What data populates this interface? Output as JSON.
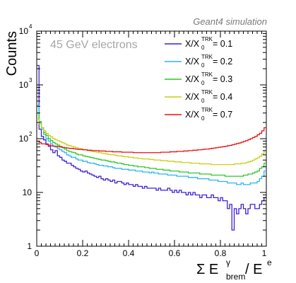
{
  "chart_data": {
    "type": "line",
    "top_label": "Geant4 simulation",
    "annotation": "45 GeV electrons",
    "ylabel": "Counts",
    "xlabel": {
      "prefix": "Σ E",
      "sup": "γ",
      "sub": "brem",
      "suffix": " / E",
      "suffix_sup": "e"
    },
    "xlim": [
      0,
      1
    ],
    "ylim": [
      1,
      10000
    ],
    "yscale": "log",
    "x_ticks": [
      "0",
      "0.2",
      "0.4",
      "0.6",
      "0.8",
      "1"
    ],
    "y_ticks": [
      {
        "base": "1"
      },
      {
        "base": "10"
      },
      {
        "base": "10",
        "exp": "2"
      },
      {
        "base": "10",
        "exp": "3"
      },
      {
        "base": "10",
        "exp": "4"
      }
    ],
    "legend_label_parts": {
      "main": "X/X",
      "sub": "0",
      "sup": "TRK"
    },
    "bin_width": 0.01,
    "series": [
      {
        "name": "X/X0TRK = 0.1",
        "legend_value": " = 0.1",
        "color": "#3d1fd6",
        "values": [
          2300,
          150,
          110,
          95,
          80,
          72,
          62,
          55,
          60,
          48,
          45,
          40,
          38,
          35,
          35,
          32,
          30,
          28,
          27,
          25,
          24,
          25,
          23,
          22,
          21,
          20,
          19,
          20,
          18,
          17,
          18,
          17,
          16,
          17,
          15,
          16,
          16,
          15,
          14,
          15,
          14,
          14,
          13,
          14,
          13,
          13,
          12,
          13,
          12,
          12,
          12,
          12,
          11,
          12,
          11,
          11,
          11,
          12,
          11,
          10,
          11,
          10,
          11,
          10,
          10,
          9,
          10,
          9,
          10,
          9,
          9,
          8,
          9,
          9,
          8,
          8,
          9,
          8,
          8,
          7,
          8,
          7,
          7,
          5,
          6,
          2,
          5,
          4,
          5,
          6,
          5,
          4,
          5,
          6,
          6,
          5,
          5,
          6,
          7,
          8
        ]
      },
      {
        "name": "X/X0TRK = 0.2",
        "legend_value": " = 0.2",
        "color": "#27b5f2",
        "values": [
          420,
          210,
          150,
          120,
          100,
          90,
          80,
          72,
          70,
          65,
          62,
          58,
          55,
          50,
          48,
          45,
          45,
          42,
          40,
          40,
          38,
          38,
          36,
          35,
          35,
          34,
          33,
          32,
          32,
          31,
          31,
          30,
          30,
          29,
          28,
          28,
          28,
          27,
          27,
          27,
          26,
          26,
          26,
          25,
          25,
          25,
          24,
          24,
          24,
          23,
          24,
          23,
          23,
          22,
          22,
          22,
          22,
          21,
          21,
          21,
          21,
          20,
          20,
          20,
          20,
          20,
          19,
          19,
          19,
          19,
          18,
          18,
          18,
          18,
          18,
          17,
          17,
          17,
          17,
          16,
          16,
          16,
          16,
          15,
          15,
          15,
          15,
          14,
          14,
          15,
          14,
          14,
          14,
          15,
          15,
          15,
          16,
          18,
          20,
          25
        ]
      },
      {
        "name": "X/X0TRK = 0.3",
        "legend_value": " = 0.3",
        "color": "#2ec62b",
        "values": [
          300,
          200,
          160,
          130,
          115,
          100,
          92,
          85,
          80,
          76,
          72,
          68,
          64,
          60,
          58,
          56,
          55,
          52,
          50,
          50,
          48,
          47,
          46,
          45,
          44,
          43,
          42,
          41,
          40,
          40,
          39,
          38,
          37,
          37,
          36,
          35,
          35,
          34,
          33,
          33,
          32,
          32,
          31,
          31,
          30,
          30,
          30,
          29,
          29,
          28,
          28,
          28,
          27,
          27,
          27,
          26,
          26,
          26,
          25,
          25,
          25,
          25,
          24,
          24,
          24,
          24,
          23,
          23,
          23,
          23,
          23,
          22,
          22,
          22,
          22,
          22,
          21,
          21,
          21,
          21,
          21,
          21,
          20,
          20,
          20,
          20,
          20,
          20,
          20,
          20,
          21,
          21,
          22,
          22,
          23,
          24,
          25,
          28,
          30,
          35
        ]
      },
      {
        "name": "X/X0TRK = 0.4",
        "legend_value": " = 0.4",
        "color": "#c7cf13",
        "values": [
          230,
          190,
          160,
          140,
          125,
          115,
          108,
          100,
          96,
          92,
          88,
          84,
          80,
          76,
          74,
          72,
          70,
          68,
          66,
          65,
          63,
          62,
          60,
          59,
          58,
          57,
          56,
          55,
          54,
          53,
          52,
          51,
          50,
          50,
          49,
          48,
          48,
          47,
          46,
          46,
          45,
          45,
          44,
          44,
          43,
          43,
          42,
          42,
          42,
          41,
          41,
          40,
          40,
          40,
          39,
          39,
          39,
          38,
          38,
          38,
          37,
          37,
          37,
          36,
          36,
          36,
          36,
          35,
          35,
          35,
          35,
          34,
          34,
          34,
          34,
          34,
          33,
          33,
          33,
          33,
          33,
          33,
          33,
          33,
          33,
          33,
          34,
          34,
          34,
          35,
          35,
          36,
          37,
          38,
          40,
          42,
          44,
          47,
          52,
          60
        ]
      },
      {
        "name": "X/X0TRK = 0.7",
        "legend_value": " = 0.7",
        "color": "#e81010",
        "values": [
          90,
          85,
          80,
          80,
          78,
          76,
          74,
          73,
          72,
          71,
          70,
          69,
          68,
          67,
          66,
          66,
          65,
          64,
          63,
          63,
          62,
          62,
          61,
          61,
          60,
          60,
          60,
          59,
          59,
          59,
          58,
          58,
          58,
          57,
          57,
          57,
          57,
          56,
          56,
          56,
          56,
          56,
          55,
          55,
          55,
          55,
          55,
          55,
          55,
          55,
          55,
          55,
          55,
          55,
          56,
          56,
          56,
          56,
          57,
          57,
          57,
          58,
          58,
          58,
          59,
          59,
          60,
          60,
          61,
          61,
          62,
          62,
          63,
          64,
          64,
          65,
          66,
          67,
          68,
          69,
          70,
          71,
          72,
          74,
          75,
          77,
          79,
          81,
          83,
          86,
          89,
          92,
          96,
          100,
          105,
          110,
          118,
          126,
          140,
          160
        ]
      }
    ]
  }
}
